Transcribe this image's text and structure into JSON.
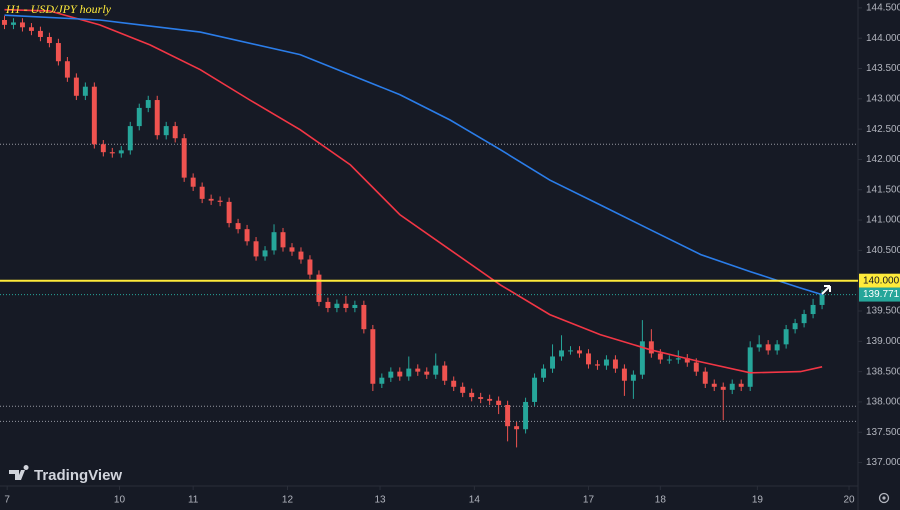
{
  "chart_data": {
    "type": "candlestick",
    "title": "H1 - USD/JPY hourly",
    "watermark": "TradingView",
    "open": [
      144.3,
      144.22,
      144.26,
      144.18,
      144.12,
      144.02,
      143.92,
      143.62,
      143.35,
      143.05,
      143.2,
      142.25,
      142.12,
      142.1,
      142.15,
      142.55,
      142.85,
      142.98,
      142.4,
      142.55,
      142.35,
      141.7,
      141.55,
      141.35,
      141.32,
      141.3,
      140.95,
      140.85,
      140.65,
      140.4,
      140.5,
      140.8,
      140.55,
      140.48,
      140.35,
      140.1,
      139.65,
      139.55,
      139.62,
      139.55,
      139.6,
      139.2,
      138.3,
      138.4,
      138.5,
      138.42,
      138.55,
      138.5,
      138.45,
      138.6,
      138.35,
      138.25,
      138.15,
      138.08,
      138.05,
      138.02,
      137.95,
      137.6,
      137.55,
      138.0,
      138.4,
      138.55,
      138.75,
      138.85,
      138.85,
      138.8,
      138.62,
      138.6,
      138.7,
      138.55,
      138.35,
      138.45,
      139.0,
      138.8,
      138.7,
      138.7,
      138.72,
      138.65,
      138.5,
      138.3,
      138.25,
      138.2,
      138.3,
      138.25,
      138.9,
      138.95,
      138.85,
      138.95,
      139.2,
      139.3,
      139.45,
      139.6
    ],
    "high": [
      144.37,
      144.33,
      144.33,
      144.25,
      144.19,
      144.09,
      143.99,
      143.69,
      143.42,
      143.27,
      143.27,
      142.32,
      142.19,
      142.22,
      142.62,
      142.92,
      143.05,
      143.05,
      142.62,
      142.62,
      142.42,
      141.77,
      141.62,
      141.42,
      141.39,
      141.37,
      141.02,
      140.92,
      140.72,
      140.57,
      140.93,
      140.87,
      140.62,
      140.55,
      140.42,
      140.17,
      139.72,
      139.69,
      139.75,
      139.67,
      139.67,
      139.27,
      138.47,
      138.57,
      138.57,
      138.75,
      138.62,
      138.57,
      138.8,
      138.67,
      138.42,
      138.32,
      138.22,
      138.15,
      138.12,
      138.09,
      138.02,
      137.67,
      138.07,
      138.47,
      138.62,
      138.95,
      139.1,
      138.92,
      138.92,
      138.87,
      138.69,
      138.77,
      138.77,
      138.62,
      138.52,
      139.35,
      139.2,
      138.87,
      138.77,
      138.85,
      138.79,
      138.72,
      138.57,
      138.37,
      138.32,
      138.37,
      138.37,
      139.0,
      139.1,
      139.02,
      139.02,
      139.27,
      139.37,
      139.52,
      139.7,
      139.85
    ],
    "low": [
      144.15,
      144.15,
      144.11,
      144.05,
      143.95,
      143.85,
      143.55,
      143.28,
      142.98,
      142.98,
      142.18,
      142.05,
      142.03,
      142.03,
      142.08,
      142.48,
      142.78,
      142.33,
      142.33,
      142.28,
      141.63,
      141.48,
      141.28,
      141.25,
      141.23,
      140.88,
      140.78,
      140.58,
      140.33,
      140.33,
      140.43,
      140.48,
      140.41,
      140.28,
      140.03,
      139.58,
      139.48,
      139.48,
      139.48,
      139.48,
      139.13,
      138.18,
      138.23,
      138.33,
      138.35,
      138.35,
      138.43,
      138.38,
      138.38,
      138.28,
      138.18,
      138.08,
      138.01,
      137.98,
      137.95,
      137.8,
      137.35,
      137.25,
      137.48,
      137.93,
      138.33,
      138.48,
      138.68,
      138.78,
      138.73,
      138.55,
      138.53,
      138.53,
      138.48,
      138.1,
      138.05,
      138.38,
      138.73,
      138.63,
      138.63,
      138.63,
      138.58,
      138.43,
      138.23,
      138.18,
      137.7,
      138.13,
      138.18,
      138.18,
      138.83,
      138.78,
      138.78,
      138.88,
      139.13,
      139.23,
      139.38,
      139.53
    ],
    "close": [
      144.22,
      144.26,
      144.18,
      144.12,
      144.02,
      143.92,
      143.62,
      143.35,
      143.05,
      143.2,
      142.25,
      142.12,
      142.1,
      142.15,
      142.55,
      142.85,
      142.98,
      142.4,
      142.55,
      142.35,
      141.7,
      141.55,
      141.35,
      141.32,
      141.3,
      140.95,
      140.85,
      140.65,
      140.4,
      140.5,
      140.8,
      140.55,
      140.48,
      140.35,
      140.1,
      139.65,
      139.55,
      139.62,
      139.55,
      139.6,
      139.2,
      138.3,
      138.4,
      138.5,
      138.42,
      138.55,
      138.5,
      138.45,
      138.6,
      138.35,
      138.25,
      138.15,
      138.08,
      138.05,
      138.02,
      137.95,
      137.6,
      137.55,
      138.0,
      138.4,
      138.55,
      138.75,
      138.85,
      138.85,
      138.8,
      138.62,
      138.6,
      138.7,
      138.55,
      138.35,
      138.45,
      139.0,
      138.8,
      138.7,
      138.7,
      138.72,
      138.65,
      138.5,
      138.3,
      138.25,
      138.2,
      138.3,
      138.25,
      138.9,
      138.95,
      138.85,
      138.95,
      139.2,
      139.3,
      139.45,
      139.6,
      139.771
    ],
    "up_color": "#26a69a",
    "down_color": "#ef5350",
    "series": [
      {
        "color": "#f23645",
        "x": [
          0,
          5,
          10.6,
          16.2,
          21.8,
          27.3,
          32.9,
          38.5,
          44,
          49.6,
          55.2,
          60.7,
          66.3,
          71.9,
          77.5,
          83,
          88.6,
          91
        ],
        "values": [
          144.47,
          144.45,
          144.22,
          143.89,
          143.48,
          142.98,
          142.49,
          141.91,
          141.09,
          140.51,
          139.93,
          139.44,
          139.11,
          138.86,
          138.66,
          138.48,
          138.5,
          138.58
        ]
      },
      {
        "color": "#2b7de9",
        "x": [
          0,
          10.6,
          21.8,
          32.9,
          44,
          49.6,
          55.2,
          60.7,
          66.3,
          71.9,
          77.5,
          83,
          88.6,
          91
        ],
        "values": [
          144.38,
          144.3,
          144.1,
          143.73,
          143.07,
          142.65,
          142.16,
          141.66,
          141.25,
          140.84,
          140.43,
          140.15,
          139.88,
          139.77
        ]
      }
    ],
    "hlines": [
      {
        "value": 140,
        "label": "140.000",
        "color": "#ffeb3b"
      }
    ],
    "dotted_lines": [
      142.25,
      137.93,
      137.68
    ],
    "xlim": [
      -0.5,
      95
    ],
    "ylim": [
      136.63,
      144.63
    ],
    "xticks": [
      {
        "value": 0.3,
        "label": "7"
      },
      {
        "value": 12.8,
        "label": "10"
      },
      {
        "value": 21,
        "label": "11"
      },
      {
        "value": 31.5,
        "label": "12"
      },
      {
        "value": 41.8,
        "label": "13"
      },
      {
        "value": 52.3,
        "label": "14"
      },
      {
        "value": 65,
        "label": "17"
      },
      {
        "value": 73,
        "label": "18"
      },
      {
        "value": 83.8,
        "label": "19"
      },
      {
        "value": 94,
        "label": "20"
      }
    ],
    "yticks": [
      {
        "value": 144.5,
        "label": "144.500"
      },
      {
        "value": 144,
        "label": "144.000"
      },
      {
        "value": 143.5,
        "label": "143.500"
      },
      {
        "value": 143,
        "label": "143.000"
      },
      {
        "value": 142.5,
        "label": "142.500"
      },
      {
        "value": 142,
        "label": "142.000"
      },
      {
        "value": 141.5,
        "label": "141.500"
      },
      {
        "value": 141,
        "label": "141.000"
      },
      {
        "value": 140.5,
        "label": "140.500"
      },
      {
        "value": 140,
        "label": "140.000"
      },
      {
        "value": 139.5,
        "label": "139.500"
      },
      {
        "value": 139,
        "label": "139.000"
      },
      {
        "value": 138.5,
        "label": "138.500"
      },
      {
        "value": 138,
        "label": "138.000"
      },
      {
        "value": 137.5,
        "label": "137.500"
      },
      {
        "value": 137,
        "label": "137.000"
      }
    ],
    "last_price_color": "#26a69a"
  }
}
